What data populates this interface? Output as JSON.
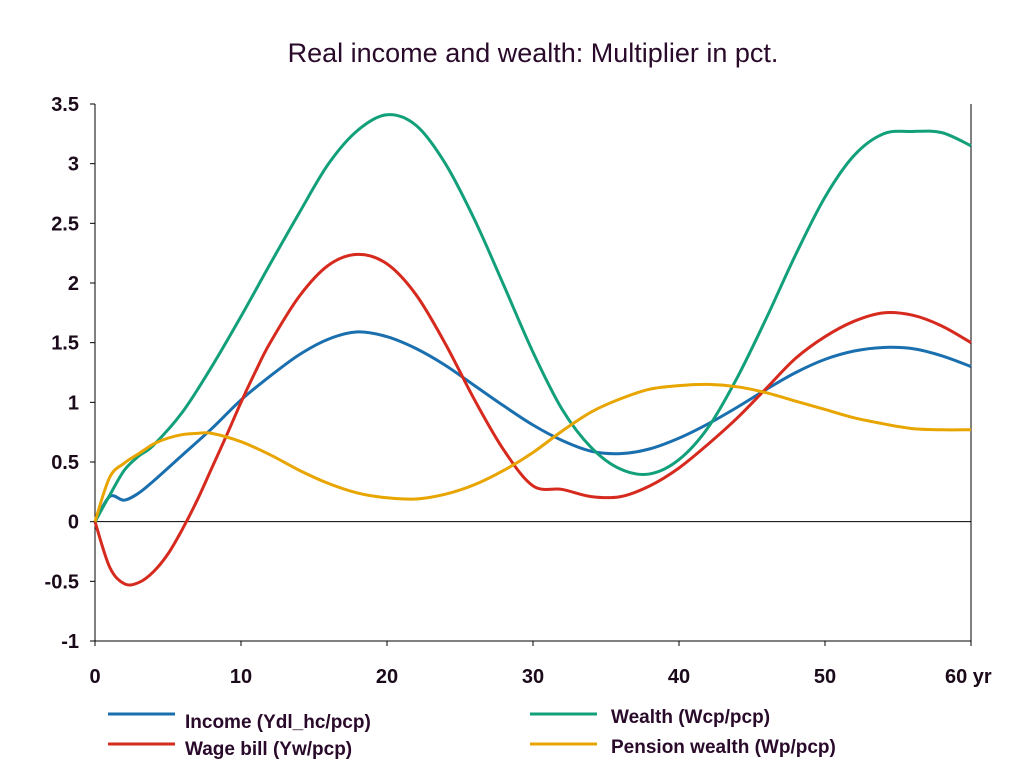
{
  "chart_data": {
    "type": "line",
    "title": "Real income and wealth: Multiplier in pct.",
    "xlabel": "",
    "ylabel": "",
    "xlim": [
      0,
      60
    ],
    "ylim": [
      -1,
      3.5
    ],
    "x_ticks": [
      0,
      10,
      20,
      30,
      40,
      50,
      60
    ],
    "x_tick_labels": [
      "0",
      "10",
      "20",
      "30",
      "40",
      "50",
      "60 yr"
    ],
    "y_ticks": [
      -1,
      -0.5,
      0,
      0.5,
      1,
      1.5,
      2,
      2.5,
      3,
      3.5
    ],
    "y_tick_labels": [
      "-1",
      "-0.5",
      "0",
      "0.5",
      "1",
      "1.5",
      "2",
      "2.5",
      "3",
      "3.5"
    ],
    "legend_position": "bottom",
    "grid": false,
    "series": [
      {
        "name": "Income (Ydl_hc/pcp)",
        "color": "#1a6faf",
        "x": [
          0,
          1,
          2,
          3,
          4,
          6,
          8,
          10,
          12,
          14,
          16,
          18,
          20,
          22,
          24,
          26,
          28,
          30,
          32,
          34,
          36,
          38,
          40,
          42,
          44,
          46,
          48,
          50,
          52,
          54,
          56,
          58,
          60
        ],
        "values": [
          0,
          0.21,
          0.18,
          0.24,
          0.34,
          0.56,
          0.78,
          1.02,
          1.22,
          1.4,
          1.53,
          1.59,
          1.55,
          1.45,
          1.31,
          1.14,
          0.97,
          0.81,
          0.68,
          0.59,
          0.57,
          0.61,
          0.7,
          0.82,
          0.96,
          1.11,
          1.25,
          1.36,
          1.43,
          1.46,
          1.45,
          1.39,
          1.3
        ]
      },
      {
        "name": "Wage bill (Yw/pcp)",
        "color": "#d62a1e",
        "x": [
          0,
          1,
          2,
          3,
          4,
          5,
          6,
          7,
          8,
          9,
          10,
          11,
          12,
          14,
          16,
          18,
          20,
          22,
          24,
          26,
          28,
          30,
          32,
          34,
          36,
          38,
          40,
          42,
          44,
          46,
          48,
          50,
          52,
          54,
          56,
          58,
          60
        ],
        "values": [
          0,
          -0.38,
          -0.52,
          -0.51,
          -0.42,
          -0.27,
          -0.06,
          0.18,
          0.45,
          0.72,
          1.0,
          1.26,
          1.5,
          1.89,
          2.15,
          2.24,
          2.16,
          1.9,
          1.49,
          1.02,
          0.6,
          0.3,
          0.27,
          0.21,
          0.21,
          0.3,
          0.45,
          0.65,
          0.87,
          1.12,
          1.37,
          1.55,
          1.68,
          1.75,
          1.73,
          1.64,
          1.5
        ]
      },
      {
        "name": "Wealth (Wcp/pcp)",
        "color": "#12a07a",
        "x": [
          0,
          1,
          2,
          3,
          4,
          6,
          8,
          10,
          12,
          14,
          16,
          18,
          20,
          22,
          24,
          26,
          28,
          30,
          32,
          34,
          36,
          38,
          40,
          42,
          44,
          46,
          48,
          50,
          52,
          54,
          56,
          58,
          60
        ],
        "values": [
          0,
          0.22,
          0.43,
          0.55,
          0.64,
          0.92,
          1.3,
          1.72,
          2.16,
          2.59,
          3.0,
          3.28,
          3.41,
          3.32,
          3.0,
          2.53,
          1.98,
          1.42,
          0.94,
          0.62,
          0.44,
          0.4,
          0.52,
          0.79,
          1.21,
          1.71,
          2.24,
          2.72,
          3.07,
          3.25,
          3.27,
          3.26,
          3.15
        ]
      },
      {
        "name": "Pension wealth (Wp/pcp)",
        "color": "#e8a500",
        "x": [
          0,
          1,
          2,
          3,
          4,
          5,
          6,
          7,
          8,
          10,
          12,
          14,
          16,
          18,
          20,
          22,
          24,
          26,
          28,
          30,
          32,
          34,
          36,
          38,
          40,
          42,
          44,
          46,
          48,
          50,
          52,
          54,
          56,
          58,
          60
        ],
        "values": [
          0,
          0.37,
          0.49,
          0.57,
          0.65,
          0.7,
          0.73,
          0.74,
          0.74,
          0.67,
          0.56,
          0.43,
          0.32,
          0.24,
          0.2,
          0.19,
          0.23,
          0.31,
          0.43,
          0.58,
          0.76,
          0.92,
          1.03,
          1.11,
          1.14,
          1.15,
          1.13,
          1.08,
          1.01,
          0.94,
          0.87,
          0.82,
          0.78,
          0.77,
          0.77
        ]
      }
    ]
  }
}
